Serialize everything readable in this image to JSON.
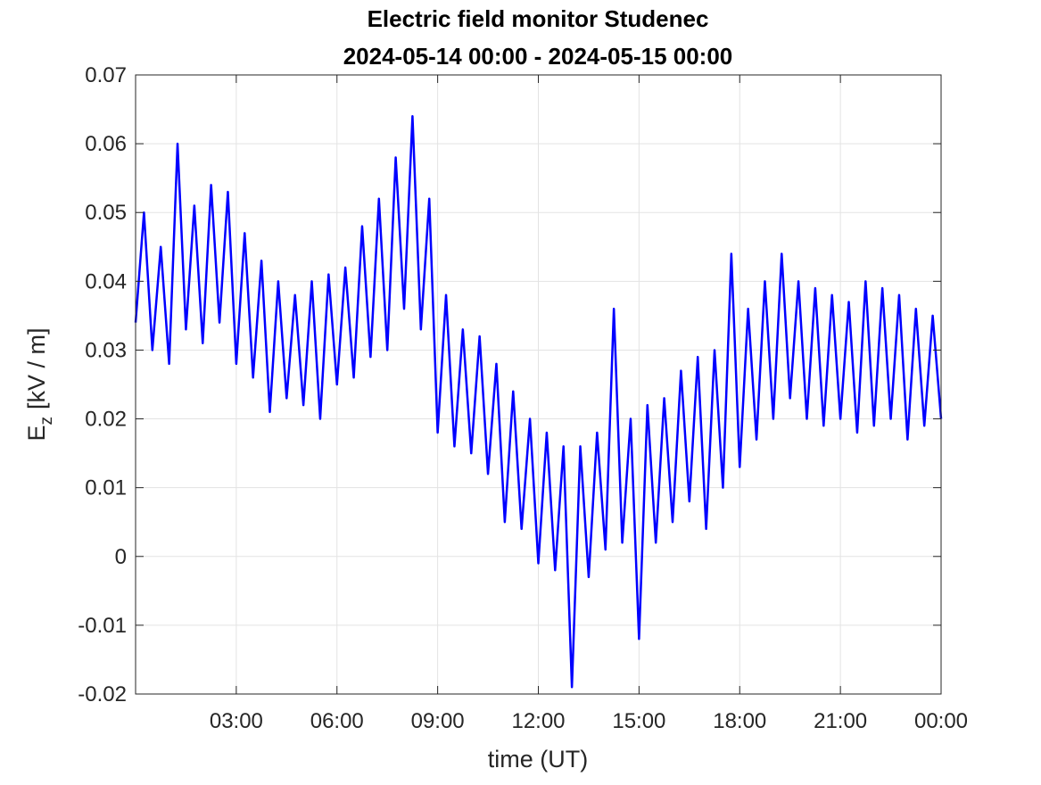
{
  "chart_data": {
    "type": "line",
    "title": "Electric field monitor Studenec",
    "subtitle": "2024-05-14 00:00 - 2024-05-15 00:00",
    "xlabel": "time (UT)",
    "ylabel": {
      "symbol": "E",
      "subscript": "z",
      "unit": "[kV / m]"
    },
    "xlim": [
      0,
      24
    ],
    "xticks": [
      {
        "value": 3,
        "label": "03:00"
      },
      {
        "value": 6,
        "label": "06:00"
      },
      {
        "value": 9,
        "label": "09:00"
      },
      {
        "value": 12,
        "label": "12:00"
      },
      {
        "value": 15,
        "label": "15:00"
      },
      {
        "value": 18,
        "label": "18:00"
      },
      {
        "value": 21,
        "label": "21:00"
      },
      {
        "value": 24,
        "label": "00:00"
      }
    ],
    "ylim": [
      -0.02,
      0.07
    ],
    "yticks": [
      -0.02,
      -0.01,
      0,
      0.01,
      0.02,
      0.03,
      0.04,
      0.05,
      0.06,
      0.07
    ],
    "grid": true,
    "x": [
      0,
      0.25,
      0.5,
      0.75,
      1,
      1.25,
      1.5,
      1.75,
      2,
      2.25,
      2.5,
      2.75,
      3,
      3.25,
      3.5,
      3.75,
      4,
      4.25,
      4.5,
      4.75,
      5,
      5.25,
      5.5,
      5.75,
      6,
      6.25,
      6.5,
      6.75,
      7,
      7.25,
      7.5,
      7.75,
      8,
      8.25,
      8.5,
      8.75,
      9,
      9.25,
      9.5,
      9.75,
      10,
      10.25,
      10.5,
      10.75,
      11,
      11.25,
      11.5,
      11.75,
      12,
      12.25,
      12.5,
      12.75,
      13,
      13.25,
      13.5,
      13.75,
      14,
      14.25,
      14.5,
      14.75,
      15,
      15.25,
      15.5,
      15.75,
      16,
      16.25,
      16.5,
      16.75,
      17,
      17.25,
      17.5,
      17.75,
      18,
      18.25,
      18.5,
      18.75,
      19,
      19.25,
      19.5,
      19.75,
      20,
      20.25,
      20.5,
      20.75,
      21,
      21.25,
      21.5,
      21.75,
      22,
      22.25,
      22.5,
      22.75,
      23,
      23.25,
      23.5,
      23.75,
      24
    ],
    "series": [
      {
        "color": "#0000ff",
        "values": [
          0.034,
          0.05,
          0.03,
          0.045,
          0.028,
          0.06,
          0.033,
          0.051,
          0.031,
          0.054,
          0.034,
          0.053,
          0.028,
          0.047,
          0.026,
          0.043,
          0.021,
          0.04,
          0.023,
          0.038,
          0.022,
          0.04,
          0.02,
          0.041,
          0.025,
          0.042,
          0.026,
          0.048,
          0.029,
          0.052,
          0.03,
          0.058,
          0.036,
          0.064,
          0.033,
          0.052,
          0.018,
          0.038,
          0.016,
          0.033,
          0.015,
          0.032,
          0.012,
          0.028,
          0.005,
          0.024,
          0.004,
          0.02,
          -0.001,
          0.018,
          -0.002,
          0.016,
          -0.019,
          0.016,
          -0.003,
          0.018,
          0.001,
          0.036,
          0.002,
          0.02,
          -0.012,
          0.022,
          0.002,
          0.023,
          0.005,
          0.027,
          0.008,
          0.029,
          0.004,
          0.03,
          0.01,
          0.044,
          0.013,
          0.036,
          0.017,
          0.04,
          0.02,
          0.044,
          0.023,
          0.04,
          0.02,
          0.039,
          0.019,
          0.038,
          0.02,
          0.037,
          0.018,
          0.04,
          0.019,
          0.039,
          0.02,
          0.038,
          0.017,
          0.036,
          0.019,
          0.035,
          0.02
        ]
      }
    ]
  }
}
